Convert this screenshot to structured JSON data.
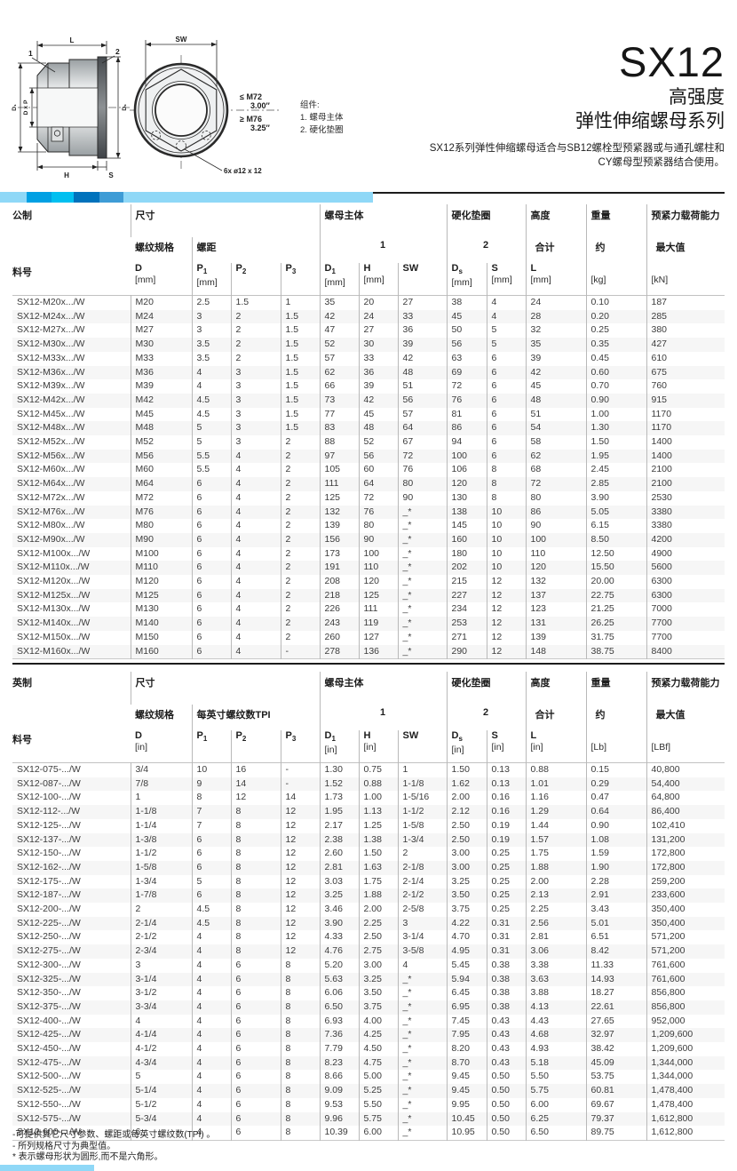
{
  "page": {
    "title": "SX12",
    "subtitle1": "高强度",
    "subtitle2": "弹性伸缩螺母系列",
    "description_line1": "SX12系列弹性伸缩螺母适合与SB12螺栓型预紧器或与通孔螺柱和",
    "description_line2": "CY螺母型预紧器结合使用。"
  },
  "colors": {
    "bar_light": "#8FD8F7",
    "bar_blue": "#00A0E3",
    "bar_cyan": "#00BFF0",
    "bar_dark": "#0072BC",
    "bar_mid": "#3E9CD6"
  },
  "diagram": {
    "callout_1": "1",
    "callout_2": "2",
    "dim_l": "L",
    "dim_sw": "SW",
    "dim_d1": "D₁",
    "dim_dxp": "D x P",
    "dim_ds": "Dₛ",
    "dim_h": "H",
    "dim_s": "S",
    "thread_note_top": "≤ M72",
    "thread_note_top2": "3.00″",
    "thread_note_bot": "≥ M76",
    "thread_note_bot2": "3.25″",
    "holes_note": "6x ø12 x 12",
    "legend_title": "组件:",
    "legend_1": "1. 螺母主体",
    "legend_2": "2. 硬化垫圈"
  },
  "metric": {
    "region_label": "公制",
    "part_label": "料号",
    "size_group": "尺寸",
    "thread_spec": "螺纹规格",
    "pitch": "螺距",
    "nut_body": "螺母主体",
    "nut_body_num": "1",
    "washer": "硬化垫圈",
    "washer_num": "2",
    "height": "高度",
    "height_sub": "合计",
    "weight": "重量",
    "weight_sub": "约",
    "preload": "预紧力载荷能力",
    "preload_sub": "最大值",
    "cols": [
      {
        "sym": "D",
        "sub": "",
        "unit": "[mm]"
      },
      {
        "sym": "P",
        "sub": "1",
        "unit": "[mm]"
      },
      {
        "sym": "P",
        "sub": "2",
        "unit": ""
      },
      {
        "sym": "P",
        "sub": "3",
        "unit": ""
      },
      {
        "sym": "D",
        "sub": "1",
        "unit": "[mm]"
      },
      {
        "sym": "H",
        "sub": "",
        "unit": "[mm]"
      },
      {
        "sym": "SW",
        "sub": "",
        "unit": ""
      },
      {
        "sym": "D",
        "sub": "s",
        "unit": "[mm]"
      },
      {
        "sym": "S",
        "sub": "",
        "unit": "[mm]"
      },
      {
        "sym": "L",
        "sub": "",
        "unit": "[mm]"
      },
      {
        "sym": "",
        "sub": "",
        "unit": "[kg]"
      },
      {
        "sym": "",
        "sub": "",
        "unit": "[kN]"
      }
    ],
    "rows": [
      [
        "SX12-M20x.../W",
        "M20",
        "2.5",
        "1.5",
        "1",
        "35",
        "20",
        "27",
        "38",
        "4",
        "24",
        "0.10",
        "187"
      ],
      [
        "SX12-M24x.../W",
        "M24",
        "3",
        "2",
        "1.5",
        "42",
        "24",
        "33",
        "45",
        "4",
        "28",
        "0.20",
        "285"
      ],
      [
        "SX12-M27x.../W",
        "M27",
        "3",
        "2",
        "1.5",
        "47",
        "27",
        "36",
        "50",
        "5",
        "32",
        "0.25",
        "380"
      ],
      [
        "SX12-M30x.../W",
        "M30",
        "3.5",
        "2",
        "1.5",
        "52",
        "30",
        "39",
        "56",
        "5",
        "35",
        "0.35",
        "427"
      ],
      [
        "SX12-M33x.../W",
        "M33",
        "3.5",
        "2",
        "1.5",
        "57",
        "33",
        "42",
        "63",
        "6",
        "39",
        "0.45",
        "610"
      ],
      [
        "SX12-M36x.../W",
        "M36",
        "4",
        "3",
        "1.5",
        "62",
        "36",
        "48",
        "69",
        "6",
        "42",
        "0.60",
        "675"
      ],
      [
        "SX12-M39x.../W",
        "M39",
        "4",
        "3",
        "1.5",
        "66",
        "39",
        "51",
        "72",
        "6",
        "45",
        "0.70",
        "760"
      ],
      [
        "SX12-M42x.../W",
        "M42",
        "4.5",
        "3",
        "1.5",
        "73",
        "42",
        "56",
        "76",
        "6",
        "48",
        "0.90",
        "915"
      ],
      [
        "SX12-M45x.../W",
        "M45",
        "4.5",
        "3",
        "1.5",
        "77",
        "45",
        "57",
        "81",
        "6",
        "51",
        "1.00",
        "1170"
      ],
      [
        "SX12-M48x.../W",
        "M48",
        "5",
        "3",
        "1.5",
        "83",
        "48",
        "64",
        "86",
        "6",
        "54",
        "1.30",
        "1170"
      ],
      [
        "SX12-M52x.../W",
        "M52",
        "5",
        "3",
        "2",
        "88",
        "52",
        "67",
        "94",
        "6",
        "58",
        "1.50",
        "1400"
      ],
      [
        "SX12-M56x.../W",
        "M56",
        "5.5",
        "4",
        "2",
        "97",
        "56",
        "72",
        "100",
        "6",
        "62",
        "1.95",
        "1400"
      ],
      [
        "SX12-M60x.../W",
        "M60",
        "5.5",
        "4",
        "2",
        "105",
        "60",
        "76",
        "106",
        "8",
        "68",
        "2.45",
        "2100"
      ],
      [
        "SX12-M64x.../W",
        "M64",
        "6",
        "4",
        "2",
        "111",
        "64",
        "80",
        "120",
        "8",
        "72",
        "2.85",
        "2100"
      ],
      [
        "SX12-M72x.../W",
        "M72",
        "6",
        "4",
        "2",
        "125",
        "72",
        "90",
        "130",
        "8",
        "80",
        "3.90",
        "2530"
      ],
      [
        "SX12-M76x.../W",
        "M76",
        "6",
        "4",
        "2",
        "132",
        "76",
        "_*",
        "138",
        "10",
        "86",
        "5.05",
        "3380"
      ],
      [
        "SX12-M80x.../W",
        "M80",
        "6",
        "4",
        "2",
        "139",
        "80",
        "_*",
        "145",
        "10",
        "90",
        "6.15",
        "3380"
      ],
      [
        "SX12-M90x.../W",
        "M90",
        "6",
        "4",
        "2",
        "156",
        "90",
        "_*",
        "160",
        "10",
        "100",
        "8.50",
        "4200"
      ],
      [
        "SX12-M100x.../W",
        "M100",
        "6",
        "4",
        "2",
        "173",
        "100",
        "_*",
        "180",
        "10",
        "110",
        "12.50",
        "4900"
      ],
      [
        "SX12-M110x.../W",
        "M110",
        "6",
        "4",
        "2",
        "191",
        "110",
        "_*",
        "202",
        "10",
        "120",
        "15.50",
        "5600"
      ],
      [
        "SX12-M120x.../W",
        "M120",
        "6",
        "4",
        "2",
        "208",
        "120",
        "_*",
        "215",
        "12",
        "132",
        "20.00",
        "6300"
      ],
      [
        "SX12-M125x.../W",
        "M125",
        "6",
        "4",
        "2",
        "218",
        "125",
        "_*",
        "227",
        "12",
        "137",
        "22.75",
        "6300"
      ],
      [
        "SX12-M130x.../W",
        "M130",
        "6",
        "4",
        "2",
        "226",
        "111",
        "_*",
        "234",
        "12",
        "123",
        "21.25",
        "7000"
      ],
      [
        "SX12-M140x.../W",
        "M140",
        "6",
        "4",
        "2",
        "243",
        "119",
        "_*",
        "253",
        "12",
        "131",
        "26.25",
        "7700"
      ],
      [
        "SX12-M150x.../W",
        "M150",
        "6",
        "4",
        "2",
        "260",
        "127",
        "_*",
        "271",
        "12",
        "139",
        "31.75",
        "7700"
      ],
      [
        "SX12-M160x.../W",
        "M160",
        "6",
        "4",
        "-",
        "278",
        "136",
        "_*",
        "290",
        "12",
        "148",
        "38.75",
        "8400"
      ]
    ]
  },
  "imperial": {
    "region_label": "英制",
    "part_label": "料号",
    "size_group": "尺寸",
    "thread_spec": "螺纹规格",
    "pitch": "每英寸螺纹数TPI",
    "nut_body": "螺母主体",
    "nut_body_num": "1",
    "washer": "硬化垫圈",
    "washer_num": "2",
    "height": "高度",
    "height_sub": "合计",
    "weight": "重量",
    "weight_sub": "约",
    "preload": "预紧力载荷能力",
    "preload_sub": "最大值",
    "cols": [
      {
        "sym": "D",
        "sub": "",
        "unit": "[in]"
      },
      {
        "sym": "P",
        "sub": "1",
        "unit": ""
      },
      {
        "sym": "P",
        "sub": "2",
        "unit": ""
      },
      {
        "sym": "P",
        "sub": "3",
        "unit": ""
      },
      {
        "sym": "D",
        "sub": "1",
        "unit": "[in]"
      },
      {
        "sym": "H",
        "sub": "",
        "unit": "[in]"
      },
      {
        "sym": "SW",
        "sub": "",
        "unit": ""
      },
      {
        "sym": "D",
        "sub": "s",
        "unit": "[in]"
      },
      {
        "sym": "S",
        "sub": "",
        "unit": "[in]"
      },
      {
        "sym": "L",
        "sub": "",
        "unit": "[in]"
      },
      {
        "sym": "",
        "sub": "",
        "unit": "[Lb]"
      },
      {
        "sym": "",
        "sub": "",
        "unit": "[LBf]"
      }
    ],
    "rows": [
      [
        "SX12-075-.../W",
        "3/4",
        "10",
        "16",
        "-",
        "1.30",
        "0.75",
        "1",
        "1.50",
        "0.13",
        "0.88",
        "0.15",
        "40,800"
      ],
      [
        "SX12-087-.../W",
        "7/8",
        "9",
        "14",
        "-",
        "1.52",
        "0.88",
        "1-1/8",
        "1.62",
        "0.13",
        "1.01",
        "0.29",
        "54,400"
      ],
      [
        "SX12-100-.../W",
        "1",
        "8",
        "12",
        "14",
        "1.73",
        "1.00",
        "1-5/16",
        "2.00",
        "0.16",
        "1.16",
        "0.47",
        "64,800"
      ],
      [
        "SX12-112-.../W",
        "1-1/8",
        "7",
        "8",
        "12",
        "1.95",
        "1.13",
        "1-1/2",
        "2.12",
        "0.16",
        "1.29",
        "0.64",
        "86,400"
      ],
      [
        "SX12-125-.../W",
        "1-1/4",
        "7",
        "8",
        "12",
        "2.17",
        "1.25",
        "1-5/8",
        "2.50",
        "0.19",
        "1.44",
        "0.90",
        "102,410"
      ],
      [
        "SX12-137-.../W",
        "1-3/8",
        "6",
        "8",
        "12",
        "2.38",
        "1.38",
        "1-3/4",
        "2.50",
        "0.19",
        "1.57",
        "1.08",
        "131,200"
      ],
      [
        "SX12-150-.../W",
        "1-1/2",
        "6",
        "8",
        "12",
        "2.60",
        "1.50",
        "2",
        "3.00",
        "0.25",
        "1.75",
        "1.59",
        "172,800"
      ],
      [
        "SX12-162-.../W",
        "1-5/8",
        "6",
        "8",
        "12",
        "2.81",
        "1.63",
        "2-1/8",
        "3.00",
        "0.25",
        "1.88",
        "1.90",
        "172,800"
      ],
      [
        "SX12-175-.../W",
        "1-3/4",
        "5",
        "8",
        "12",
        "3.03",
        "1.75",
        "2-1/4",
        "3.25",
        "0.25",
        "2.00",
        "2.28",
        "259,200"
      ],
      [
        "SX12-187-.../W",
        "1-7/8",
        "6",
        "8",
        "12",
        "3.25",
        "1.88",
        "2-1/2",
        "3.50",
        "0.25",
        "2.13",
        "2.91",
        "233,600"
      ],
      [
        "SX12-200-.../W",
        "2",
        "4.5",
        "8",
        "12",
        "3.46",
        "2.00",
        "2-5/8",
        "3.75",
        "0.25",
        "2.25",
        "3.43",
        "350,400"
      ],
      [
        "SX12-225-.../W",
        "2-1/4",
        "4.5",
        "8",
        "12",
        "3.90",
        "2.25",
        "3",
        "4.22",
        "0.31",
        "2.56",
        "5.01",
        "350,400"
      ],
      [
        "SX12-250-.../W",
        "2-1/2",
        "4",
        "8",
        "12",
        "4.33",
        "2.50",
        "3-1/4",
        "4.70",
        "0.31",
        "2.81",
        "6.51",
        "571,200"
      ],
      [
        "SX12-275-.../W",
        "2-3/4",
        "4",
        "8",
        "12",
        "4.76",
        "2.75",
        "3-5/8",
        "4.95",
        "0.31",
        "3.06",
        "8.42",
        "571,200"
      ],
      [
        "SX12-300-.../W",
        "3",
        "4",
        "6",
        "8",
        "5.20",
        "3.00",
        "4",
        "5.45",
        "0.38",
        "3.38",
        "11.33",
        "761,600"
      ],
      [
        "SX12-325-.../W",
        "3-1/4",
        "4",
        "6",
        "8",
        "5.63",
        "3.25",
        "_*",
        "5.94",
        "0.38",
        "3.63",
        "14.93",
        "761,600"
      ],
      [
        "SX12-350-.../W",
        "3-1/2",
        "4",
        "6",
        "8",
        "6.06",
        "3.50",
        "_*",
        "6.45",
        "0.38",
        "3.88",
        "18.27",
        "856,800"
      ],
      [
        "SX12-375-.../W",
        "3-3/4",
        "4",
        "6",
        "8",
        "6.50",
        "3.75",
        "_*",
        "6.95",
        "0.38",
        "4.13",
        "22.61",
        "856,800"
      ],
      [
        "SX12-400-.../W",
        "4",
        "4",
        "6",
        "8",
        "6.93",
        "4.00",
        "_*",
        "7.45",
        "0.43",
        "4.43",
        "27.65",
        "952,000"
      ],
      [
        "SX12-425-.../W",
        "4-1/4",
        "4",
        "6",
        "8",
        "7.36",
        "4.25",
        "_*",
        "7.95",
        "0.43",
        "4.68",
        "32.97",
        "1,209,600"
      ],
      [
        "SX12-450-.../W",
        "4-1/2",
        "4",
        "6",
        "8",
        "7.79",
        "4.50",
        "_*",
        "8.20",
        "0.43",
        "4.93",
        "38.42",
        "1,209,600"
      ],
      [
        "SX12-475-.../W",
        "4-3/4",
        "4",
        "6",
        "8",
        "8.23",
        "4.75",
        "_*",
        "8.70",
        "0.43",
        "5.18",
        "45.09",
        "1,344,000"
      ],
      [
        "SX12-500-.../W",
        "5",
        "4",
        "6",
        "8",
        "8.66",
        "5.00",
        "_*",
        "9.45",
        "0.50",
        "5.50",
        "53.75",
        "1,344,000"
      ],
      [
        "SX12-525-.../W",
        "5-1/4",
        "4",
        "6",
        "8",
        "9.09",
        "5.25",
        "_*",
        "9.45",
        "0.50",
        "5.75",
        "60.81",
        "1,478,400"
      ],
      [
        "SX12-550-.../W",
        "5-1/2",
        "4",
        "6",
        "8",
        "9.53",
        "5.50",
        "_*",
        "9.95",
        "0.50",
        "6.00",
        "69.67",
        "1,478,400"
      ],
      [
        "SX12-575-.../W",
        "5-3/4",
        "4",
        "6",
        "8",
        "9.96",
        "5.75",
        "_*",
        "10.45",
        "0.50",
        "6.25",
        "79.37",
        "1,612,800"
      ],
      [
        "SX12-600-.../W",
        "6",
        "4",
        "6",
        "8",
        "10.39",
        "6.00",
        "_*",
        "10.95",
        "0.50",
        "6.50",
        "89.75",
        "1,612,800"
      ]
    ]
  },
  "footnotes": {
    "line1": "-可提供其它尺寸参数、螺距或每英寸螺纹数(TPI) 。",
    "line2": "- 所列规格尺寸为典型值。",
    "line3": "* 表示螺母形状为圆形,而不是六角形。"
  }
}
